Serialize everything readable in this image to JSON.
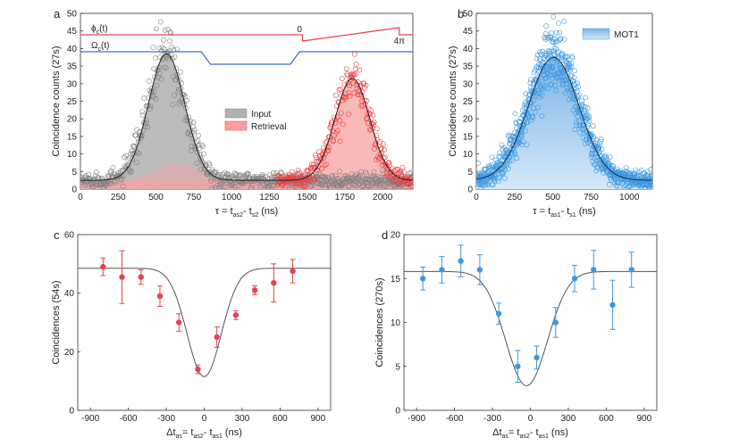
{
  "chart_data": [
    {
      "panel": "a",
      "type": "scatter",
      "xlabel": "τ = t_as2 - t_s2 (ns)",
      "xlabel_parts": [
        "τ = t",
        "as2",
        "- t",
        "s2",
        " (ns)"
      ],
      "ylabel": "Coincidence counts (27s)",
      "xlim": [
        0,
        2200
      ],
      "ylim": [
        0,
        50
      ],
      "xticks": [
        0,
        250,
        500,
        750,
        1000,
        1250,
        1500,
        1750,
        2000
      ],
      "yticks": [
        0,
        5,
        10,
        15,
        20,
        25,
        30,
        35,
        40,
        45,
        50
      ],
      "legend": [
        "Input",
        "Retrieval"
      ],
      "colors": {
        "input": "#808080",
        "input_fill": "#b0b0b0",
        "retrieval": "#ee3b3b",
        "retrieval_fill": "#f7a1a1",
        "phi": "#e5474a",
        "omega": "#3a6fc1"
      },
      "series": [
        {
          "name": "Input",
          "shape": "gaussian",
          "center": 570,
          "amplitude": 36,
          "sigma": 120,
          "baseline": 2.5
        },
        {
          "name": "Retrieval",
          "shape": "gaussian",
          "center": 1800,
          "amplitude": 29,
          "sigma": 115,
          "baseline": 2.5
        },
        {
          "name": "Input (leak)",
          "shape": "gaussian",
          "center": 650,
          "amplitude": 5,
          "sigma": 140,
          "baseline": 2.5
        }
      ],
      "control_labels": {
        "phi": "ϕ_c(t)",
        "phi_main": "ϕ",
        "phi_sub": "c",
        "phi_tail": "(t)",
        "omega": "Ω_c(t)",
        "omega_main": "Ω",
        "omega_sub": "c",
        "omega_tail": "(t)",
        "phase_start": "0",
        "phase_end": "4π"
      }
    },
    {
      "panel": "b",
      "type": "scatter",
      "xlabel": "τ = t_as1 - t_s1 (ns)",
      "xlabel_parts": [
        "τ = t",
        "as1",
        "- t",
        "s1",
        " (ns)"
      ],
      "ylabel": "Coincidence counts (27s)",
      "xlim": [
        0,
        1150
      ],
      "ylim": [
        0,
        50
      ],
      "xticks": [
        0,
        250,
        500,
        750,
        1000
      ],
      "yticks": [
        0,
        5,
        10,
        15,
        20,
        25,
        30,
        35,
        40,
        45,
        50
      ],
      "legend": [
        "MOT1"
      ],
      "colors": {
        "points": "#3d98e0",
        "fill": "#7ab4e8",
        "fit": "#1a2a4a"
      },
      "series": [
        {
          "name": "MOT1",
          "shape": "gaussian",
          "center": 505,
          "amplitude": 35,
          "sigma": 165,
          "baseline": 2.5
        }
      ]
    },
    {
      "panel": "c",
      "type": "scatter",
      "xlabel": "Δt_as = t_as2 - t_as1 (ns)",
      "xlabel_parts": [
        "Δt",
        "as",
        "= t",
        "as2",
        "- t",
        "as1",
        " (ns)"
      ],
      "ylabel": "Coincidences (54s)",
      "xlim": [
        -1000,
        1000
      ],
      "ylim": [
        0,
        60
      ],
      "xticks": [
        -900,
        -600,
        -300,
        0,
        300,
        600,
        900
      ],
      "yticks": [
        0,
        20,
        40,
        60
      ],
      "colors": {
        "points": "#e8424c",
        "fit": "#555555"
      },
      "x": [
        -800,
        -650,
        -500,
        -350,
        -200,
        -50,
        100,
        250,
        400,
        550,
        700
      ],
      "y": [
        49,
        45.5,
        45.5,
        39,
        30,
        14,
        25,
        32.5,
        41,
        43.5,
        47.5
      ],
      "yerr": [
        3,
        9,
        2.5,
        3.5,
        3,
        1.5,
        3.5,
        1.5,
        1.5,
        6.5,
        4
      ],
      "fit": {
        "baseline": 48.5,
        "depth": 37,
        "center": 0,
        "sigma": 135
      }
    },
    {
      "panel": "d",
      "type": "scatter",
      "xlabel": "Δt_as = t_as2 - t_as1 (ns)",
      "xlabel_parts": [
        "Δt",
        "as",
        "= t",
        "as2",
        "- t",
        "as1",
        " (ns)"
      ],
      "ylabel": "Coincidences (270s)",
      "xlim": [
        -1000,
        1000
      ],
      "ylim": [
        0,
        20
      ],
      "xticks": [
        -900,
        -600,
        -300,
        0,
        300,
        600,
        900
      ],
      "yticks": [
        0,
        5,
        10,
        15,
        20
      ],
      "colors": {
        "points": "#3d98e0",
        "fit": "#555555"
      },
      "x": [
        -850,
        -700,
        -550,
        -400,
        -250,
        -100,
        50,
        200,
        350,
        500,
        650,
        800
      ],
      "y": [
        15,
        16,
        17,
        16,
        11,
        5,
        6,
        10,
        15,
        16,
        12,
        16
      ],
      "yerr": [
        1.3,
        1.5,
        1.8,
        1.7,
        1.2,
        1.8,
        1.3,
        1.7,
        1.5,
        2.2,
        2.8,
        2
      ],
      "fit": {
        "baseline": 15.8,
        "depth": 13,
        "center": -30,
        "sigma": 165
      }
    }
  ]
}
